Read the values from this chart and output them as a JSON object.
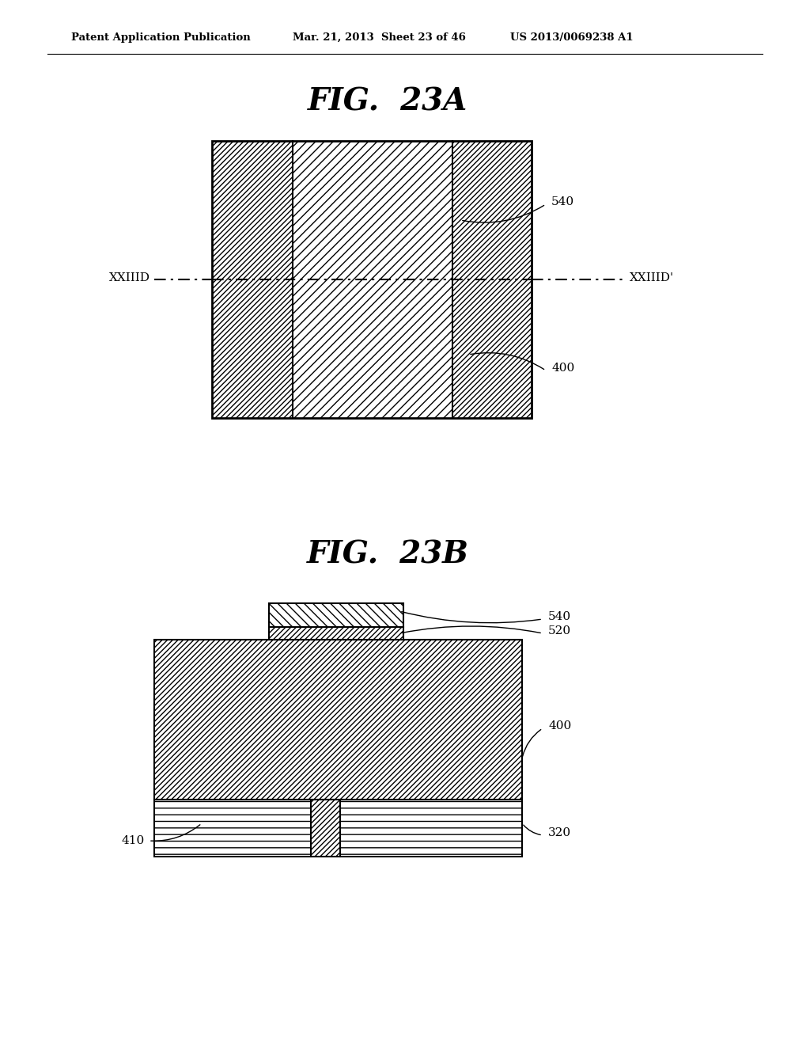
{
  "bg_color": "#ffffff",
  "header_left": "Patent Application Publication",
  "header_mid": "Mar. 21, 2013  Sheet 23 of 46",
  "header_right": "US 2013/0069238 A1",
  "fig23a_title": "FIG.  23A",
  "fig23b_title": "FIG.  23B",
  "label_540": "540",
  "label_400": "400",
  "label_520": "520",
  "label_320": "320",
  "label_410": "410",
  "label_xxiiid": "XXIIID",
  "label_xxiiidp": "XXIIID’"
}
